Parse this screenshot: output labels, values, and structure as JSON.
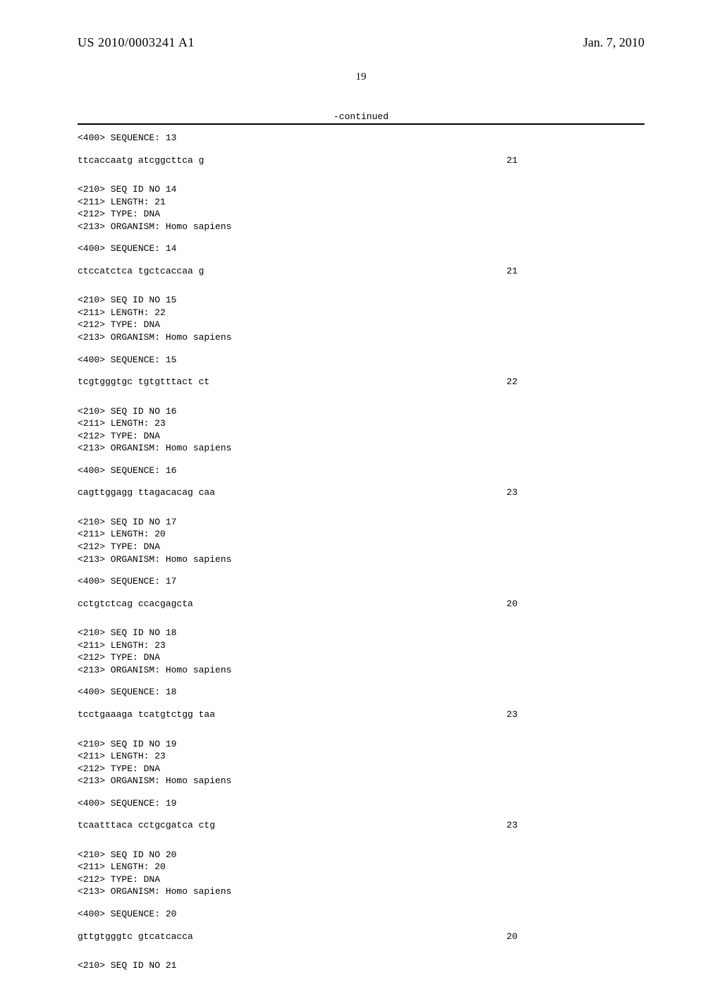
{
  "header": {
    "publication_number": "US 2010/0003241 A1",
    "publication_date": "Jan. 7, 2010"
  },
  "page_number": "19",
  "continued_label": "-continued",
  "sequences": [
    {
      "pre_label": "<400> SEQUENCE: 13",
      "sequence_text": "ttcaccaatg atcggcttca g",
      "length_value": "21",
      "meta": []
    },
    {
      "meta": [
        "<210> SEQ ID NO 14",
        "<211> LENGTH: 21",
        "<212> TYPE: DNA",
        "<213> ORGANISM: Homo sapiens"
      ],
      "pre_label": "<400> SEQUENCE: 14",
      "sequence_text": "ctccatctca tgctcaccaa g",
      "length_value": "21"
    },
    {
      "meta": [
        "<210> SEQ ID NO 15",
        "<211> LENGTH: 22",
        "<212> TYPE: DNA",
        "<213> ORGANISM: Homo sapiens"
      ],
      "pre_label": "<400> SEQUENCE: 15",
      "sequence_text": "tcgtgggtgc tgtgtttact ct",
      "length_value": "22"
    },
    {
      "meta": [
        "<210> SEQ ID NO 16",
        "<211> LENGTH: 23",
        "<212> TYPE: DNA",
        "<213> ORGANISM: Homo sapiens"
      ],
      "pre_label": "<400> SEQUENCE: 16",
      "sequence_text": "cagttggagg ttagacacag caa",
      "length_value": "23"
    },
    {
      "meta": [
        "<210> SEQ ID NO 17",
        "<211> LENGTH: 20",
        "<212> TYPE: DNA",
        "<213> ORGANISM: Homo sapiens"
      ],
      "pre_label": "<400> SEQUENCE: 17",
      "sequence_text": "cctgtctcag ccacgagcta",
      "length_value": "20"
    },
    {
      "meta": [
        "<210> SEQ ID NO 18",
        "<211> LENGTH: 23",
        "<212> TYPE: DNA",
        "<213> ORGANISM: Homo sapiens"
      ],
      "pre_label": "<400> SEQUENCE: 18",
      "sequence_text": "tcctgaaaga tcatgtctgg taa",
      "length_value": "23"
    },
    {
      "meta": [
        "<210> SEQ ID NO 19",
        "<211> LENGTH: 23",
        "<212> TYPE: DNA",
        "<213> ORGANISM: Homo sapiens"
      ],
      "pre_label": "<400> SEQUENCE: 19",
      "sequence_text": "tcaatttaca cctgcgatca ctg",
      "length_value": "23"
    },
    {
      "meta": [
        "<210> SEQ ID NO 20",
        "<211> LENGTH: 20",
        "<212> TYPE: DNA",
        "<213> ORGANISM: Homo sapiens"
      ],
      "pre_label": "<400> SEQUENCE: 20",
      "sequence_text": "gttgtgggtc gtcatcacca",
      "length_value": "20"
    },
    {
      "meta": [
        "<210> SEQ ID NO 21"
      ],
      "pre_label": "",
      "sequence_text": "",
      "length_value": ""
    }
  ]
}
